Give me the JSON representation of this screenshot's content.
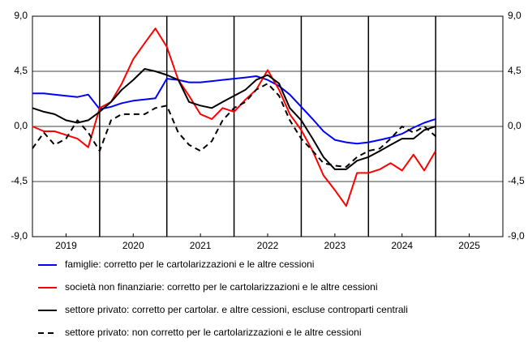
{
  "chart_data": {
    "type": "line",
    "x": [
      2019.0,
      2019.17,
      2019.33,
      2019.5,
      2019.67,
      2019.83,
      2020.0,
      2020.17,
      2020.33,
      2020.5,
      2020.67,
      2020.83,
      2021.0,
      2021.17,
      2021.33,
      2021.5,
      2021.67,
      2021.83,
      2022.0,
      2022.17,
      2022.33,
      2022.5,
      2022.67,
      2022.83,
      2023.0,
      2023.17,
      2023.33,
      2023.5,
      2023.67,
      2023.83,
      2024.0,
      2024.17,
      2024.33,
      2024.5,
      2024.67,
      2024.83,
      2025.0
    ],
    "series": [
      {
        "name": "famiglie: corretto per le cartolarizzazioni e le altre cessioni",
        "color": "#0000ff",
        "dash": false,
        "values": [
          2.7,
          2.7,
          2.6,
          2.5,
          2.4,
          2.6,
          1.4,
          1.6,
          1.9,
          2.1,
          2.2,
          2.3,
          3.9,
          3.8,
          3.6,
          3.6,
          3.7,
          3.8,
          3.9,
          4.0,
          4.1,
          3.8,
          3.3,
          2.6,
          1.6,
          0.6,
          -0.4,
          -1.1,
          -1.3,
          -1.4,
          -1.3,
          -1.1,
          -0.9,
          -0.6,
          -0.1,
          0.3,
          0.6
        ]
      },
      {
        "name": "società non finanziarie: corretto per le cartolarizzazioni e le altre cessioni",
        "color": "#ff0000",
        "dash": false,
        "values": [
          0.0,
          -0.4,
          -0.4,
          -0.7,
          -1.0,
          -1.7,
          1.5,
          2.0,
          3.5,
          5.5,
          6.8,
          8.0,
          6.5,
          3.8,
          2.5,
          1.0,
          0.6,
          1.5,
          1.2,
          2.2,
          3.0,
          4.6,
          3.0,
          1.0,
          -0.3,
          -2.0,
          -4.0,
          -5.2,
          -6.5,
          -3.8,
          -3.8,
          -3.5,
          -3.0,
          -3.6,
          -2.3,
          -3.6,
          -2.0
        ]
      },
      {
        "name": "settore privato: corretto per cartolar. e altre cessioni, escluse controparti centrali",
        "color": "#000000",
        "dash": false,
        "values": [
          1.5,
          1.2,
          1.0,
          0.5,
          0.3,
          0.5,
          1.2,
          2.0,
          3.0,
          3.8,
          4.7,
          4.5,
          4.2,
          3.8,
          2.0,
          1.7,
          1.5,
          2.0,
          2.5,
          3.0,
          3.8,
          4.2,
          3.5,
          1.5,
          0.5,
          -1.0,
          -2.5,
          -3.5,
          -3.5,
          -2.8,
          -2.5,
          -2.0,
          -1.5,
          -1.0,
          -1.0,
          -0.3,
          0.0
        ]
      },
      {
        "name": "settore privato: non corretto per le cartolarizzazioni e le altre cessioni",
        "color": "#000000",
        "dash": true,
        "values": [
          -1.8,
          -0.5,
          -1.5,
          -1.0,
          0.5,
          -0.5,
          -2.0,
          0.5,
          1.0,
          1.0,
          1.0,
          1.5,
          1.7,
          -0.5,
          -1.5,
          -2.0,
          -1.2,
          0.5,
          1.5,
          2.0,
          3.0,
          3.5,
          2.5,
          0.5,
          -1.0,
          -2.0,
          -3.0,
          -3.2,
          -3.3,
          -2.5,
          -2.0,
          -1.8,
          -1.0,
          0.0,
          -0.5,
          0.0,
          -0.8
        ]
      }
    ],
    "xlim": [
      2019,
      2026
    ],
    "xticks": [
      {
        "value": 2019.5,
        "label": "2019"
      },
      {
        "value": 2020.5,
        "label": "2020"
      },
      {
        "value": 2021.5,
        "label": "2021"
      },
      {
        "value": 2022.5,
        "label": "2022"
      },
      {
        "value": 2023.5,
        "label": "2023"
      },
      {
        "value": 2024.5,
        "label": "2024"
      },
      {
        "value": 2025.5,
        "label": "2025"
      }
    ],
    "ylim": [
      -9,
      9
    ],
    "yticks": [
      {
        "value": -9,
        "label": "-9,0"
      },
      {
        "value": -4.5,
        "label": "-4,5"
      },
      {
        "value": 0,
        "label": "0,0"
      },
      {
        "value": 4.5,
        "label": "4,5"
      },
      {
        "value": 9,
        "label": "9,0"
      }
    ],
    "grid": true
  }
}
